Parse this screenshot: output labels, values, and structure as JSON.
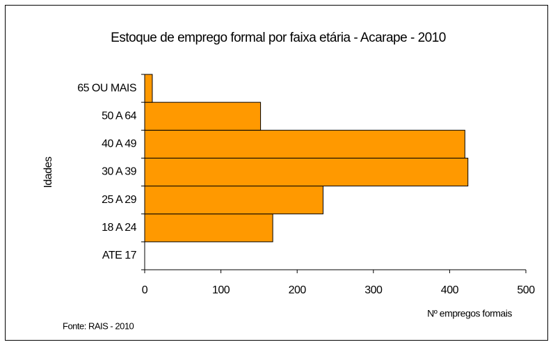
{
  "chart_data": {
    "type": "bar",
    "orientation": "horizontal",
    "title": "Estoque de emprego formal por faixa etária - Acarape - 2010",
    "y_label": "Idades",
    "x_label": "Nº empregos formais",
    "source": "Fonte: RAIS - 2010",
    "categories": [
      "ATE 17",
      "18 A 24",
      "25 A 29",
      "30 A 39",
      "40 A 49",
      "50 A 64",
      "65 OU MAIS"
    ],
    "values": [
      0,
      168,
      234,
      424,
      420,
      152,
      10
    ],
    "color": "#ff9900",
    "xlim": [
      0,
      500
    ],
    "xticks": [
      0,
      100,
      200,
      300,
      400,
      500
    ],
    "grid": false
  }
}
